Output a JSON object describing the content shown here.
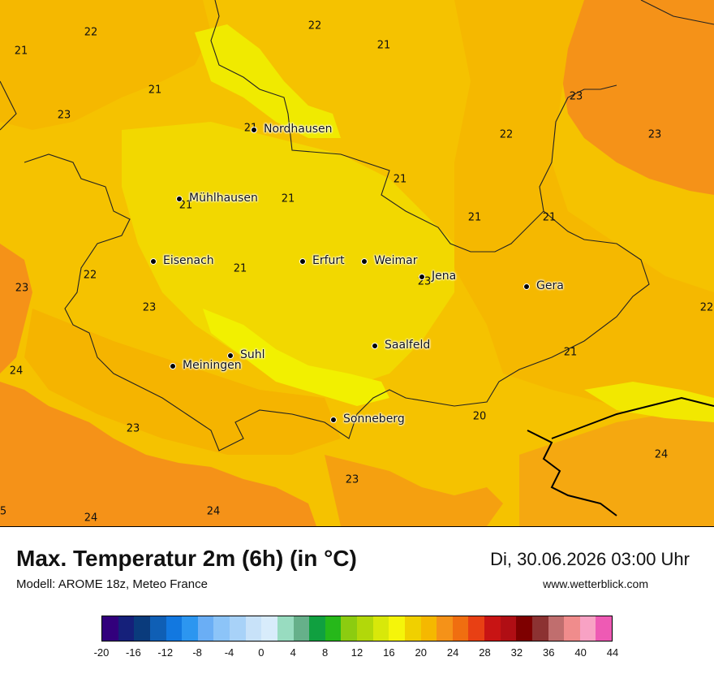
{
  "header": {
    "title": "Max. Temperatur 2m (6h) (in °C)",
    "model": "Modell: AROME 18z, Meteo France",
    "date": "Di, 30.06.2026 03:00 Uhr",
    "site": "www.wetterblick.com"
  },
  "cities": [
    {
      "name": "Nordhausen"
    },
    {
      "name": "Mühlhausen"
    },
    {
      "name": "Eisenach"
    },
    {
      "name": "Erfurt"
    },
    {
      "name": "Weimar"
    },
    {
      "name": "Jena"
    },
    {
      "name": "Gera"
    },
    {
      "name": "Saalfeld"
    },
    {
      "name": "Suhl"
    },
    {
      "name": "Meiningen"
    },
    {
      "name": "Sonneberg"
    }
  ],
  "temperature_labels": [
    "22",
    "22",
    "21",
    "21",
    "21",
    "23",
    "23",
    "21",
    "22",
    "23",
    "21",
    "21",
    "21",
    "21",
    "21",
    "22",
    "21",
    "23",
    "22",
    "23",
    "24",
    "23",
    "24",
    "21",
    "24",
    "23",
    "24",
    "20",
    "5",
    "23"
  ],
  "legend": {
    "colors": [
      "#32007c",
      "#15207a",
      "#0a3b7c",
      "#0f5fb5",
      "#1278e0",
      "#2c96f0",
      "#6aaef5",
      "#8cc4f8",
      "#a8d2f8",
      "#c8e2f9",
      "#d8ecfb",
      "#98dcc0",
      "#66b08a",
      "#10a040",
      "#26b81a",
      "#8ccc10",
      "#b2d80a",
      "#d8e80a",
      "#f5f50a",
      "#f0d000",
      "#f5b800",
      "#f59218",
      "#f06e10",
      "#e84014",
      "#c81414",
      "#b00e14",
      "#7e0000",
      "#8c3232",
      "#c06e6e",
      "#f08c8c",
      "#f8a2c4",
      "#ee5ab4"
    ],
    "ticks": [
      "-20",
      "-16",
      "-12",
      "-8",
      "-4",
      "0",
      "4",
      "8",
      "12",
      "16",
      "20",
      "24",
      "28",
      "32",
      "36",
      "40",
      "44"
    ]
  }
}
